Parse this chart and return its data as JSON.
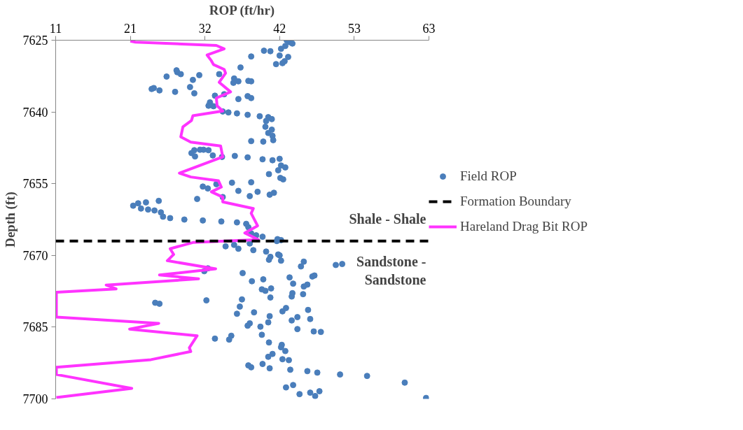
{
  "chart_data": {
    "type": "scatter",
    "xlabel": "ROP (ft/hr)",
    "ylabel": "Depth (ft)",
    "xlim": [
      10.5,
      63
    ],
    "xticks": [
      {
        "value": 10.5,
        "label": "11"
      },
      21,
      {
        "value": 31.5,
        "label": "32"
      },
      42,
      {
        "value": 52.5,
        "label": "53"
      },
      63
    ],
    "ylim": [
      7700,
      7625
    ],
    "yticks": [
      7625,
      7640,
      7655,
      7670,
      7685,
      7700
    ],
    "grid": false,
    "legend": "right",
    "series": [
      {
        "name": "Field ROP",
        "marker": "circle",
        "color": "#4a7ebb",
        "x": [
          43.0,
          43.4,
          43.8,
          42.8,
          42.2,
          39.8,
          40.7,
          38.0,
          42.0,
          43.2,
          42.7,
          42.4,
          41.5,
          36.5,
          27.6,
          27.5,
          28.1,
          30.7,
          26.1,
          29.8,
          33.5,
          35.6,
          36.2,
          35.5,
          37.6,
          38.0,
          24.0,
          24.3,
          25.1,
          27.3,
          29.4,
          30.0,
          32.9,
          34.2,
          37.5,
          38.0,
          36.2,
          32.2,
          32.0,
          32.7,
          34.0,
          34.8,
          36.0,
          37.5,
          39.2,
          40.4,
          40.9,
          40.1,
          40.0,
          40.9,
          40.4,
          41.0,
          41.1,
          38.0,
          39.7,
          30.0,
          30.8,
          31.3,
          32.0,
          29.6,
          33.9,
          30.1,
          32.6,
          35.7,
          37.5,
          39.6,
          41.0,
          42.0,
          42.2,
          42.8,
          41.8,
          40.5,
          42.1,
          42.5,
          31.2,
          31.9,
          33.1,
          35.3,
          38.0,
          36.2,
          37.8,
          38.9,
          40.6,
          41.2,
          30.4,
          34.0,
          21.4,
          22.1,
          23.2,
          25.0,
          22.5,
          23.5,
          24.4,
          25.3,
          25.6,
          26.6,
          28.6,
          31.2,
          33.8,
          36.0,
          37.3,
          37.6,
          38.0,
          38.7,
          39.6,
          41.7,
          42.2,
          41.6,
          34.4,
          35.6,
          36.2,
          37.8,
          38.3,
          40.1,
          40.7,
          40.5,
          41.8,
          42.0,
          42.2,
          45.4,
          45.0,
          49.9,
          50.8,
          31.9,
          31.4,
          36.8,
          39.7,
          38.1,
          43.4,
          43.9,
          46.6,
          46.9,
          45.4,
          45.9,
          39.5,
          40.0,
          40.8,
          40.7,
          43.8,
          43.7,
          45.3,
          24.5,
          25.1,
          31.7,
          36.7,
          36.4,
          36.0,
          38.4,
          40.6,
          40.4,
          42.4,
          42.9,
          46.0,
          46.3,
          43.7,
          44.5,
          37.8,
          37.5,
          39.3,
          44.5,
          46.8,
          47.8,
          39.5,
          32.9,
          34.9,
          35.2,
          40.5,
          42.2,
          42.3,
          42.8,
          41.0,
          40.4,
          42.4,
          43.3,
          37.6,
          38.0,
          39.6,
          40.6,
          43.5,
          45.9,
          47.3,
          50.5,
          54.3,
          59.6,
          42.9,
          43.9,
          44.8,
          46.3,
          47.0,
          47.6,
          62.6
        ],
        "values": [
          7625.0,
          7625.4,
          7625.7,
          7626.2,
          7626.8,
          7627.2,
          7627.3,
          7628.4,
          7628.2,
          7628.5,
          7629.4,
          7629.8,
          7630.0,
          7630.7,
          7631.7,
          7631.3,
          7632.1,
          7632.3,
          7632.6,
          7633.3,
          7632.1,
          7633.0,
          7633.6,
          7633.9,
          7633.5,
          7633.6,
          7635.2,
          7635.0,
          7635.5,
          7635.8,
          7634.8,
          7636.1,
          7636.6,
          7636.3,
          7636.7,
          7637.1,
          7637.3,
          7638.0,
          7638.7,
          7638.8,
          7639.9,
          7640.1,
          7640.3,
          7640.6,
          7640.9,
          7641.1,
          7641.5,
          7641.9,
          7643.1,
          7643.7,
          7644.4,
          7645.0,
          7645.9,
          7646.1,
          7646.2,
          7648.0,
          7647.9,
          7647.9,
          7648.0,
          7648.6,
          7649.4,
          7649.3,
          7649.1,
          7649.2,
          7649.5,
          7649.9,
          7650.1,
          7649.8,
          7651.2,
          7651.6,
          7652.2,
          7653.0,
          7653.8,
          7654.1,
          7655.6,
          7656.0,
          7655.1,
          7654.8,
          7654.7,
          7656.5,
          7657.6,
          7656.7,
          7657.3,
          7656.9,
          7658.2,
          7657.8,
          7659.6,
          7659.1,
          7658.9,
          7658.6,
          7660.2,
          7660.4,
          7660.6,
          7661.0,
          7661.9,
          7662.2,
          7662.5,
          7662.7,
          7662.9,
          7663.1,
          7663.4,
          7664.1,
          7665.4,
          7665.8,
          7666.1,
          7666.6,
          7666.8,
          7667.0,
          7668.1,
          7667.8,
          7668.6,
          7667.5,
          7668.9,
          7669.2,
          7670.3,
          7670.9,
          7669.8,
          7670.0,
          7671.1,
          7671.3,
          7672.3,
          7672.0,
          7671.8,
          7672.7,
          7673.3,
          7673.7,
          7675.0,
          7675.4,
          7674.6,
          7675.9,
          7674.4,
          7674.2,
          7676.5,
          7676.1,
          7677.1,
          7677.4,
          7676.9,
          7678.8,
          7677.9,
          7678.6,
          7678.1,
          7679.9,
          7680.1,
          7679.4,
          7679.2,
          7680.7,
          7682.2,
          7681.9,
          7682.7,
          7684.0,
          7681.7,
          7681.0,
          7681.4,
          7683.3,
          7683.6,
          7682.9,
          7684.2,
          7684.7,
          7684.9,
          7685.4,
          7685.9,
          7686.0,
          7686.6,
          7687.4,
          7687.6,
          7686.8,
          7688.2,
          7689.2,
          7688.7,
          7690.0,
          7690.6,
          7691.2,
          7691.7,
          7691.9,
          7693.0,
          7693.4,
          7692.7,
          7693.6,
          7693.9,
          7694.2,
          7694.5,
          7694.9,
          7695.2,
          7696.6,
          7697.6,
          7697.1,
          7699.0,
          7698.7,
          7699.4,
          7698.4,
          7699.8
        ]
      },
      {
        "name": "Hareland Drag Bit ROP",
        "type": "line",
        "marker": "none",
        "color": "#ff33ff",
        "line_style": "solid",
        "x": [
          21.0,
          21.7,
          33.1,
          34.2,
          31.8,
          32.4,
          32.7,
          34.2,
          34.4,
          33.5,
          35.1,
          33.1,
          33.2,
          34.0,
          29.8,
          29.6,
          28.4,
          28.1,
          29.5,
          33.7,
          34.0,
          27.9,
          29.5,
          33.4,
          33.8,
          32.4,
          34.0,
          34.0,
          38.3,
          38.0,
          38.9,
          37.1,
          39.0,
          29.8,
          26.6,
          27.1,
          26.2,
          33.0,
          25.1,
          30.6,
          17.6,
          19.0,
          10.6,
          10.6,
          25.0,
          20.9,
          30.4,
          29.3,
          29.5,
          23.9,
          10.6,
          10.6,
          21.2,
          10.6
        ],
        "values": [
          7625.2,
          7625.4,
          7626.1,
          7626.8,
          7628.1,
          7629.3,
          7630.1,
          7631.1,
          7631.9,
          7633.8,
          7635.8,
          7637.1,
          7638.7,
          7639.8,
          7640.8,
          7641.8,
          7643.1,
          7645.2,
          7646.3,
          7647.1,
          7649.4,
          7652.8,
          7653.6,
          7654.4,
          7655.7,
          7656.7,
          7657.8,
          7658.8,
          7660.2,
          7661.2,
          7663.8,
          7665.3,
          7666.7,
          7667.3,
          7668.6,
          7669.8,
          7671.1,
          7672.8,
          7674.1,
          7674.9,
          7676.2,
          7677.0,
          7677.7,
          7682.9,
          7684.2,
          7685.4,
          7686.8,
          7689.3,
          7690.1,
          7691.8,
          7693.4,
          7694.9,
          7697.8,
          7699.7
        ]
      }
    ],
    "ref_lines": [
      {
        "axis": "y",
        "value": 7667.0,
        "label": "Formation Boundary",
        "color": "#000000",
        "line_style": "dashed"
      }
    ],
    "annotations": [
      "Shale - Shale",
      "Sandstone -\nSandstone"
    ]
  }
}
